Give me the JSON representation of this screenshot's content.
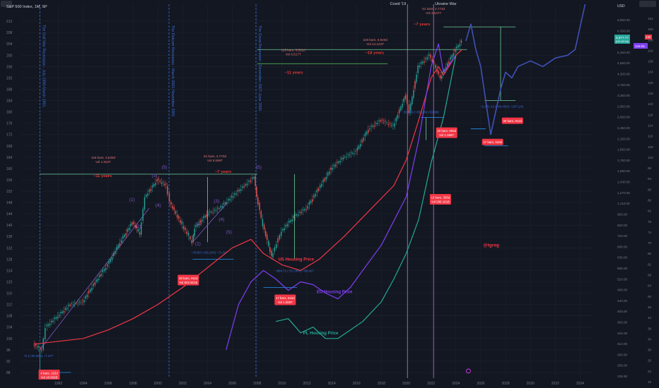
{
  "chart_data": {
    "type": "line",
    "title": "S&P 500 Index, 1M, SP",
    "x_axis": {
      "range": [
        1989,
        2035
      ],
      "ticks": [
        1992,
        1994,
        1996,
        1998,
        2000,
        2002,
        2004,
        2006,
        2008,
        2010,
        2012,
        2014,
        2016,
        2018,
        2020,
        2022,
        2024,
        2026,
        2028,
        2030,
        2032,
        2034
      ]
    },
    "left_axis": {
      "range": [
        86,
        218
      ],
      "ticks": [
        88,
        92,
        96,
        100,
        104,
        108,
        112,
        116,
        120,
        124,
        128,
        132,
        136,
        140,
        144,
        148,
        152,
        156,
        160,
        164,
        168,
        172,
        176,
        180,
        184,
        188,
        192,
        196,
        200,
        204,
        208,
        212
      ]
    },
    "right_axis_1": {
      "label": "USD",
      "ticks": [
        "6,950.00",
        "6,350.00",
        "5,700.00",
        "5,150.00",
        "4,650.00",
        "4,200.00",
        "3,750.00",
        "3,350.00",
        "2,950.00",
        "2,650.00",
        "2,450.00",
        "2,150.00",
        "1,950.00",
        "1,750.00",
        "1,590.00",
        "1,430.00",
        "1,270.00",
        "1,110.00",
        "960.00",
        "820.00",
        "720.00",
        "690.00",
        "630.00",
        "580.00",
        "520.00",
        "480.00",
        "440.00",
        "400.00",
        "360.00",
        "344.00",
        "312.00",
        "284.50",
        "256.00",
        "235.50"
      ],
      "badges": [
        "5,9??.??",
        "(00:19:54)"
      ]
    },
    "right_axis_2": {
      "ticks": [
        "154",
        "150",
        "146",
        "142",
        "138",
        "134",
        "130",
        "126",
        "122",
        "118",
        "114",
        "110",
        "106",
        "102",
        "98",
        "94",
        "90",
        "86",
        "82",
        "78",
        "74",
        "70",
        "66",
        "62",
        "58",
        "54",
        "50",
        "46",
        "42",
        "38",
        "34",
        "30",
        "26",
        "22",
        "18"
      ],
      "badges": [
        "144.81",
        "142"
      ]
    },
    "series": [
      {
        "name": "",
        "kind": "candles",
        "color": "#26a69a",
        "x": [
          1990,
          1990.7,
          1991,
          1992,
          1993,
          1994,
          1995,
          1996,
          1997,
          1998,
          1998.6,
          1999,
          2000,
          2000.7,
          2001,
          2002,
          2002.8,
          2003,
          2004,
          2005,
          2006,
          2007,
          2007.8,
          2008,
          2008.5,
          2009.2,
          2010,
          2011,
          2012,
          2013,
          2014,
          2015,
          2016,
          2017,
          2018,
          2019,
          2020,
          2020.3,
          2021,
          2021.9,
          2022.8,
          2023,
          2024,
          2024.5
        ],
        "y": [
          98,
          96,
          104,
          108,
          112,
          113,
          120,
          126,
          134,
          141,
          137,
          150,
          156,
          154,
          148,
          140,
          134,
          139,
          144,
          146,
          150,
          154,
          157,
          150,
          140,
          129,
          138,
          143,
          146,
          153,
          160,
          164,
          166,
          174,
          177,
          175,
          186,
          180,
          196,
          200,
          192,
          194,
          202,
          205
        ]
      },
      {
        "name": "",
        "kind": "projection",
        "color": "#3f51b5",
        "x": [
          2024.8,
          2025.2,
          2025.6,
          2026,
          2026.4,
          2026.8,
          2027.2,
          2027.6,
          2028,
          2028.5,
          2029,
          2030,
          2031,
          2032,
          2033,
          2033.6,
          2034,
          2034.4
        ],
        "y": [
          205,
          211,
          202,
          196,
          184,
          172,
          180,
          188,
          194,
          192,
          196,
          198,
          196,
          199,
          200,
          202,
          210,
          218
        ]
      },
      {
        "name": "US Housing Price",
        "color": "#f23645",
        "x": [
          1990,
          1992,
          1994,
          1996,
          1998,
          2000,
          2002,
          2004,
          2006,
          2007.5,
          2008.5,
          2010,
          2011.5,
          2013,
          2015,
          2017,
          2019,
          2020,
          2021,
          2022,
          2022.6,
          2023,
          2024,
          2024.5
        ],
        "y": [
          98,
          99,
          100,
          103,
          107,
          112,
          118,
          125,
          132,
          135,
          130,
          126,
          124,
          128,
          136,
          145,
          154,
          163,
          177,
          192,
          196,
          193,
          200,
          202
        ]
      },
      {
        "name": "EU Housing Price",
        "color": "#7e3ff2",
        "x": [
          2005.5,
          2006.5,
          2007.5,
          2008.5,
          2009.5,
          2010.5,
          2011.5,
          2012.5,
          2013.5,
          2014.5,
          2015.5,
          2016.5,
          2018,
          2020,
          2021,
          2022,
          2022.6,
          2023,
          2024
        ],
        "y": [
          96,
          112,
          120,
          124,
          121,
          117,
          120,
          119,
          116,
          114,
          118,
          124,
          133,
          150,
          170,
          196,
          204,
          194,
          200
        ]
      },
      {
        "name": "PL Housing Price",
        "color": "#22ab94",
        "x": [
          2009.5,
          2010.5,
          2011.5,
          2012.5,
          2013.5,
          2014.5,
          2015.5,
          2016.5,
          2018,
          2019,
          2020,
          2021,
          2022,
          2023,
          2024
        ],
        "y": [
          106,
          107,
          102,
          104,
          100,
          100,
          103,
          106,
          113,
          121,
          130,
          142,
          162,
          178,
          200
        ]
      }
    ],
    "annotations": {
      "top_labels": [
        "Covid '19",
        "Ukraine War"
      ],
      "vertical_texts": [
        "The Gulf War Recession - July 1990-March 1991",
        "The Dotcom Recession - March 2001-November 2001",
        "The Great Recession - December 2007-June 2009"
      ],
      "period_labels": [
        "~11 years",
        "~7 years",
        "~11 years",
        "~18 years",
        "~7 years"
      ],
      "wave_labels": [
        "(1)",
        "(2)",
        "(3)",
        "(4)",
        "(5)",
        "(1)",
        "(2)",
        "(3)",
        "(4)",
        "(5)",
        "(5)"
      ],
      "range_texts": [
        "119 bars, 3,530d\nVol 1.922T",
        "91 bars, 2,770d\nVol 6.596T",
        "119 bars, 3,531d\nVol 6.617T",
        "228 bars, 6,940d\nVol 14.122T",
        "61 bars, 2,772d\nVol 4.347T"
      ],
      "drop_texts": [
        "71 (+30.35%) ~7.477",
        "~78.80 (~50.22%) ~71.54",
        "~804.71 (~57.28%) ~80,427",
        "~2,371.42 (~49.40%) ~237,142",
        "333.86 (~35.10%) 33,386"
      ],
      "boxes": [
        "4 bars, 122d\nVol 18.002B",
        "30 bars, 911d\nVol 802.601B",
        "17 bars, 516d\nVol 1.698T",
        "20 bars, 606d\nVol 1.056T",
        "15 bars, 305d\nVol 586.161B",
        "30 bars, 912d",
        "17 bars, 518d"
      ],
      "watermark": "@tgreg"
    }
  }
}
